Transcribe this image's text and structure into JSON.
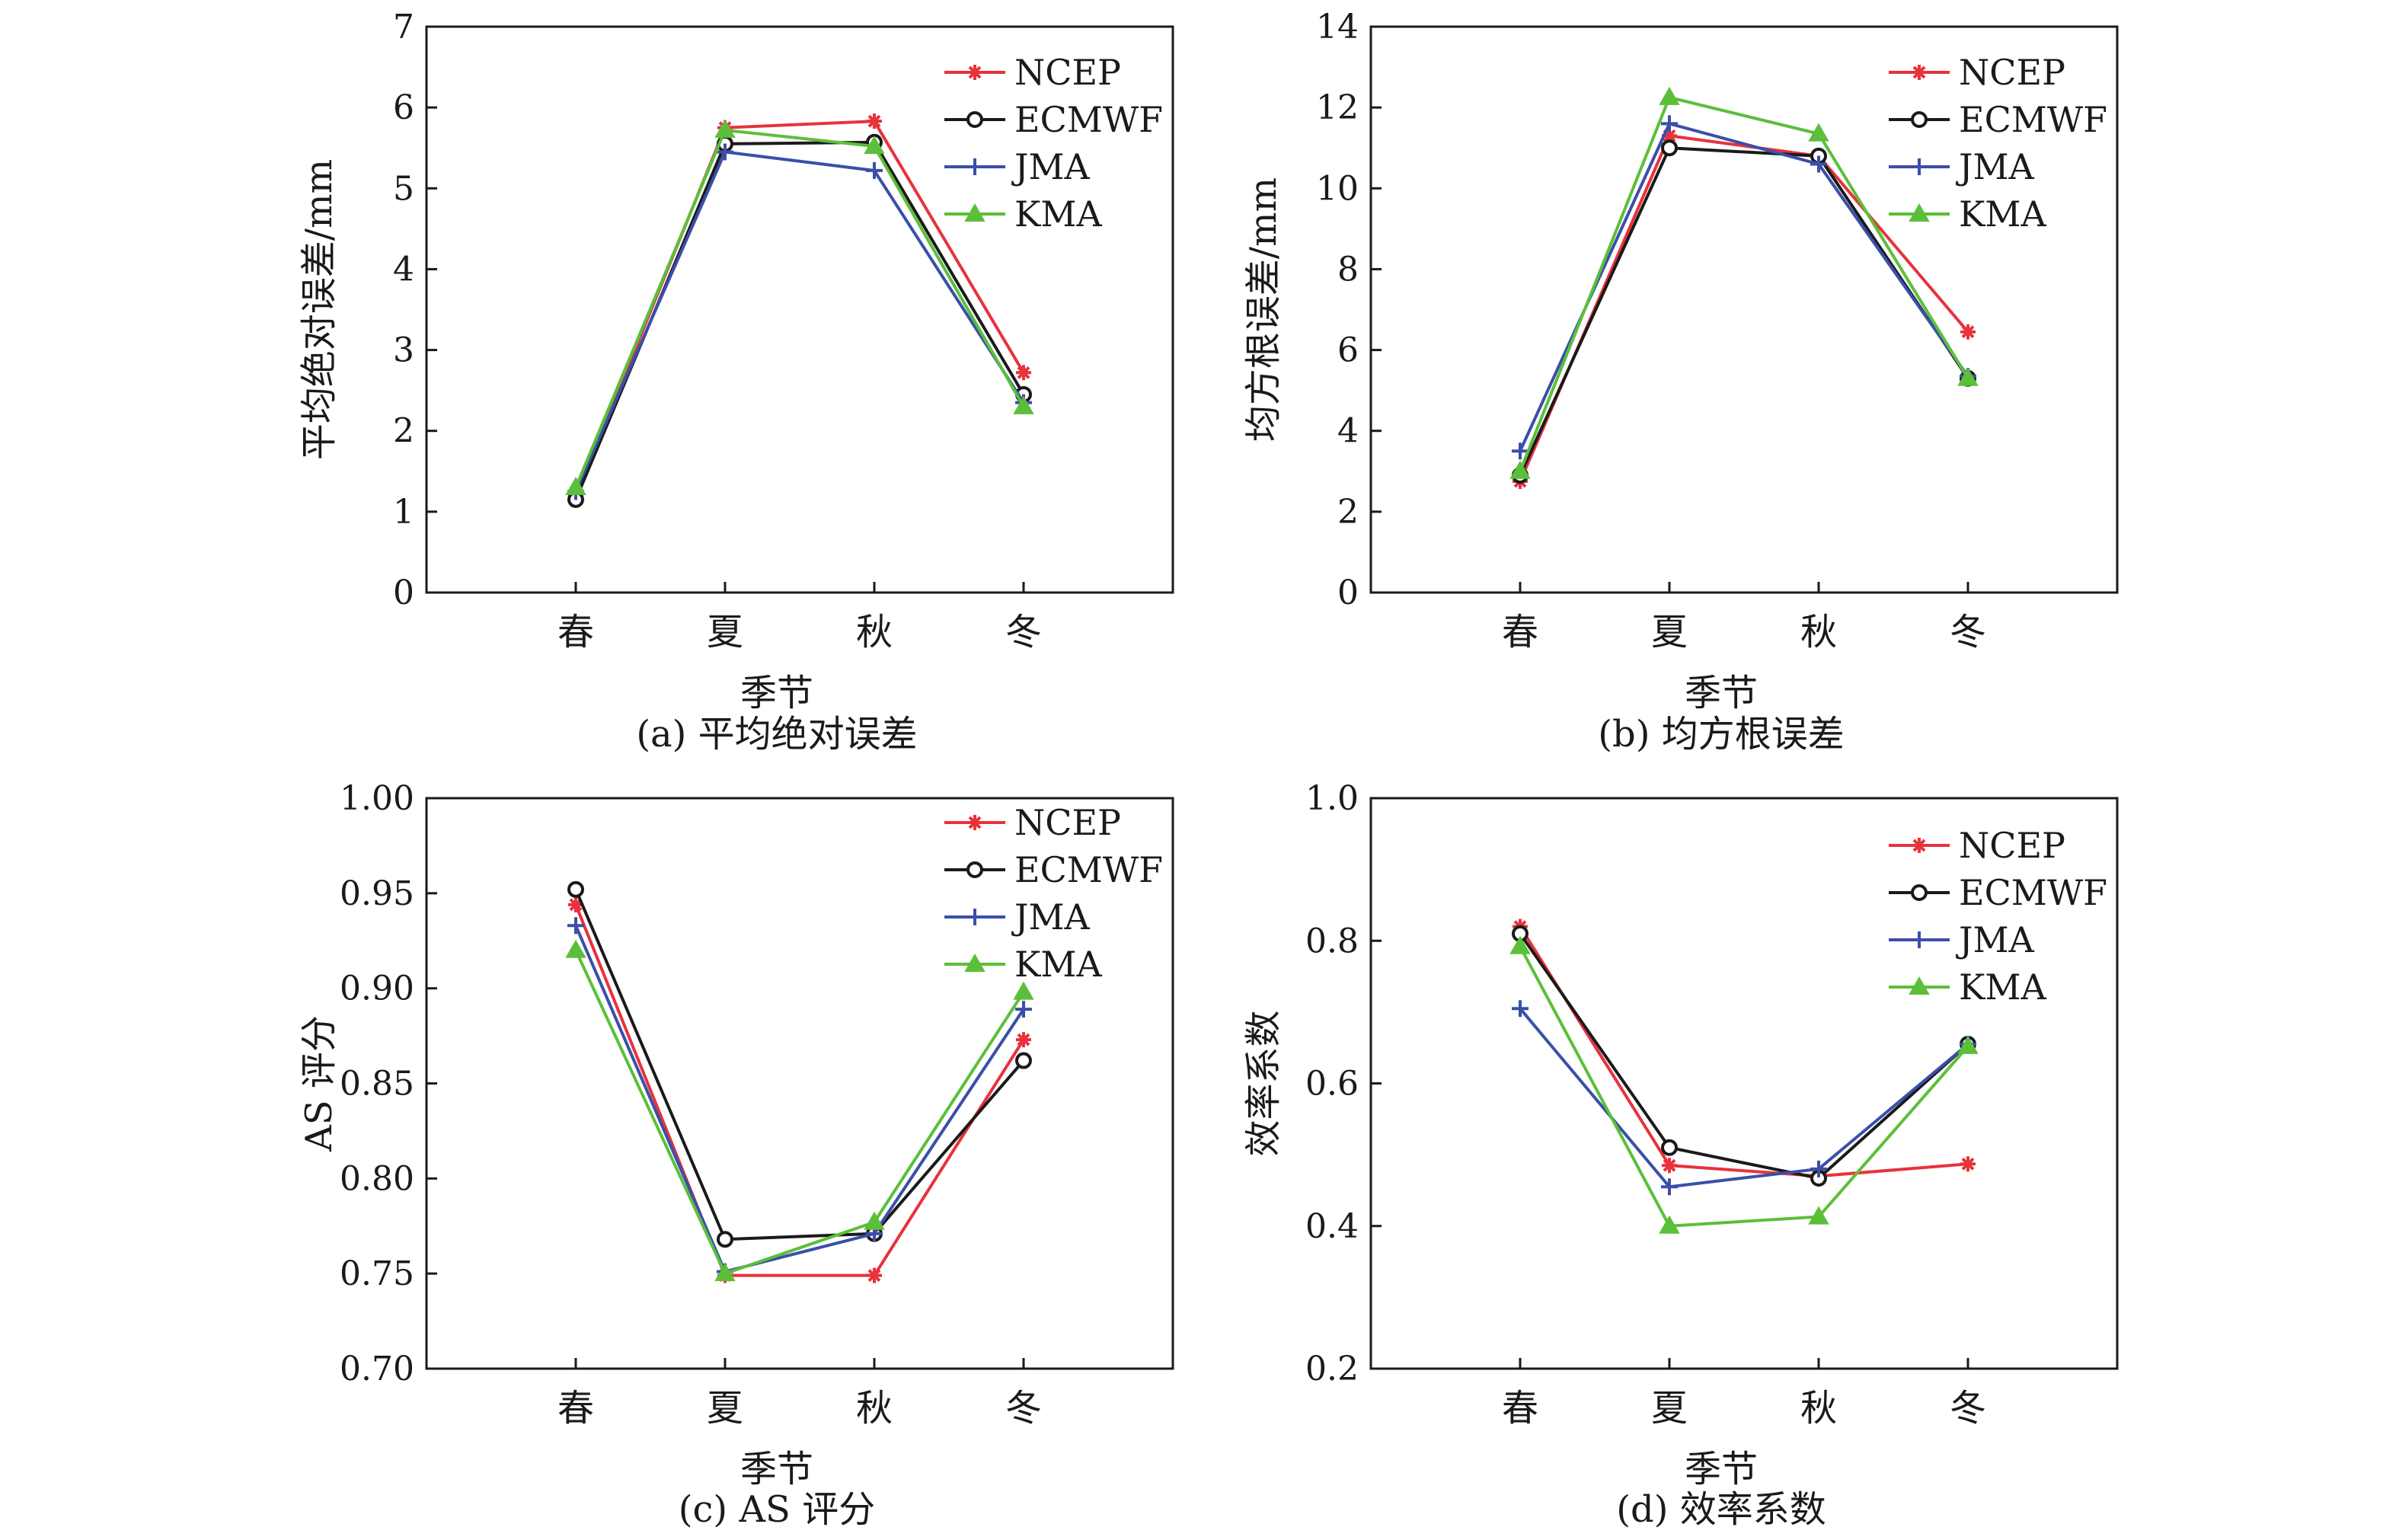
{
  "chart_data": [
    {
      "type": "line",
      "caption": "(a) 平均绝对误差",
      "xlabel": "季节",
      "ylabel": "平均绝对误差/mm",
      "categories": [
        "春",
        "夏",
        "秋",
        "冬"
      ],
      "ylim": [
        0,
        7
      ],
      "yticks": [
        "0",
        "1",
        "2",
        "3",
        "4",
        "5",
        "6",
        "7"
      ],
      "grid": false,
      "legend_position": "top-right",
      "series": [
        {
          "name": "NCEP",
          "values": [
            1.2,
            5.75,
            5.83,
            2.72
          ]
        },
        {
          "name": "ECMWF",
          "values": [
            1.15,
            5.55,
            5.57,
            2.45
          ]
        },
        {
          "name": "JMA",
          "values": [
            1.25,
            5.45,
            5.22,
            2.35
          ]
        },
        {
          "name": "KMA",
          "values": [
            1.3,
            5.72,
            5.52,
            2.3
          ]
        }
      ]
    },
    {
      "type": "line",
      "caption": "(b) 均方根误差",
      "xlabel": "季节",
      "ylabel": "均方根误差/mm",
      "categories": [
        "春",
        "夏",
        "秋",
        "冬"
      ],
      "ylim": [
        0,
        14
      ],
      "yticks": [
        "0",
        "2",
        "4",
        "6",
        "8",
        "10",
        "12",
        "14"
      ],
      "grid": false,
      "legend_position": "top-right",
      "series": [
        {
          "name": "NCEP",
          "values": [
            2.75,
            11.3,
            10.8,
            6.45
          ]
        },
        {
          "name": "ECMWF",
          "values": [
            2.9,
            11.0,
            10.8,
            5.3
          ]
        },
        {
          "name": "JMA",
          "values": [
            3.5,
            11.6,
            10.6,
            5.35
          ]
        },
        {
          "name": "KMA",
          "values": [
            3.0,
            12.25,
            11.35,
            5.3
          ]
        }
      ]
    },
    {
      "type": "line",
      "caption": "(c) AS 评分",
      "xlabel": "季节",
      "ylabel": "AS 评分",
      "categories": [
        "春",
        "夏",
        "秋",
        "冬"
      ],
      "ylim": [
        0.7,
        1.0
      ],
      "yticks": [
        "0.70",
        "0.75",
        "0.80",
        "0.85",
        "0.90",
        "0.95",
        "1.00"
      ],
      "grid": false,
      "legend_position": "top-right",
      "series": [
        {
          "name": "NCEP",
          "values": [
            0.944,
            0.749,
            0.749,
            0.873
          ]
        },
        {
          "name": "ECMWF",
          "values": [
            0.952,
            0.768,
            0.771,
            0.862
          ]
        },
        {
          "name": "JMA",
          "values": [
            0.933,
            0.751,
            0.771,
            0.889
          ]
        },
        {
          "name": "KMA",
          "values": [
            0.92,
            0.75,
            0.777,
            0.898
          ]
        }
      ]
    },
    {
      "type": "line",
      "caption": "(d) 效率系数",
      "xlabel": "季节",
      "ylabel": "效率系数",
      "categories": [
        "春",
        "夏",
        "秋",
        "冬"
      ],
      "ylim": [
        0.2,
        1.0
      ],
      "yticks": [
        "0.2",
        "0.4",
        "0.6",
        "0.8",
        "1.0"
      ],
      "grid": false,
      "legend_position": "top-right",
      "series": [
        {
          "name": "NCEP",
          "values": [
            0.82,
            0.485,
            0.47,
            0.487
          ]
        },
        {
          "name": "ECMWF",
          "values": [
            0.81,
            0.51,
            0.467,
            0.655
          ]
        },
        {
          "name": "JMA",
          "values": [
            0.705,
            0.455,
            0.48,
            0.655
          ]
        },
        {
          "name": "KMA",
          "values": [
            0.792,
            0.4,
            0.413,
            0.652
          ]
        }
      ]
    }
  ],
  "series_styles": {
    "NCEP": {
      "color": "#e8323c",
      "marker": "asterisk"
    },
    "ECMWF": {
      "color": "#1a1a1a",
      "marker": "circle"
    },
    "JMA": {
      "color": "#3a4fa8",
      "marker": "plus"
    },
    "KMA": {
      "color": "#5bbf3a",
      "marker": "triangle"
    }
  }
}
